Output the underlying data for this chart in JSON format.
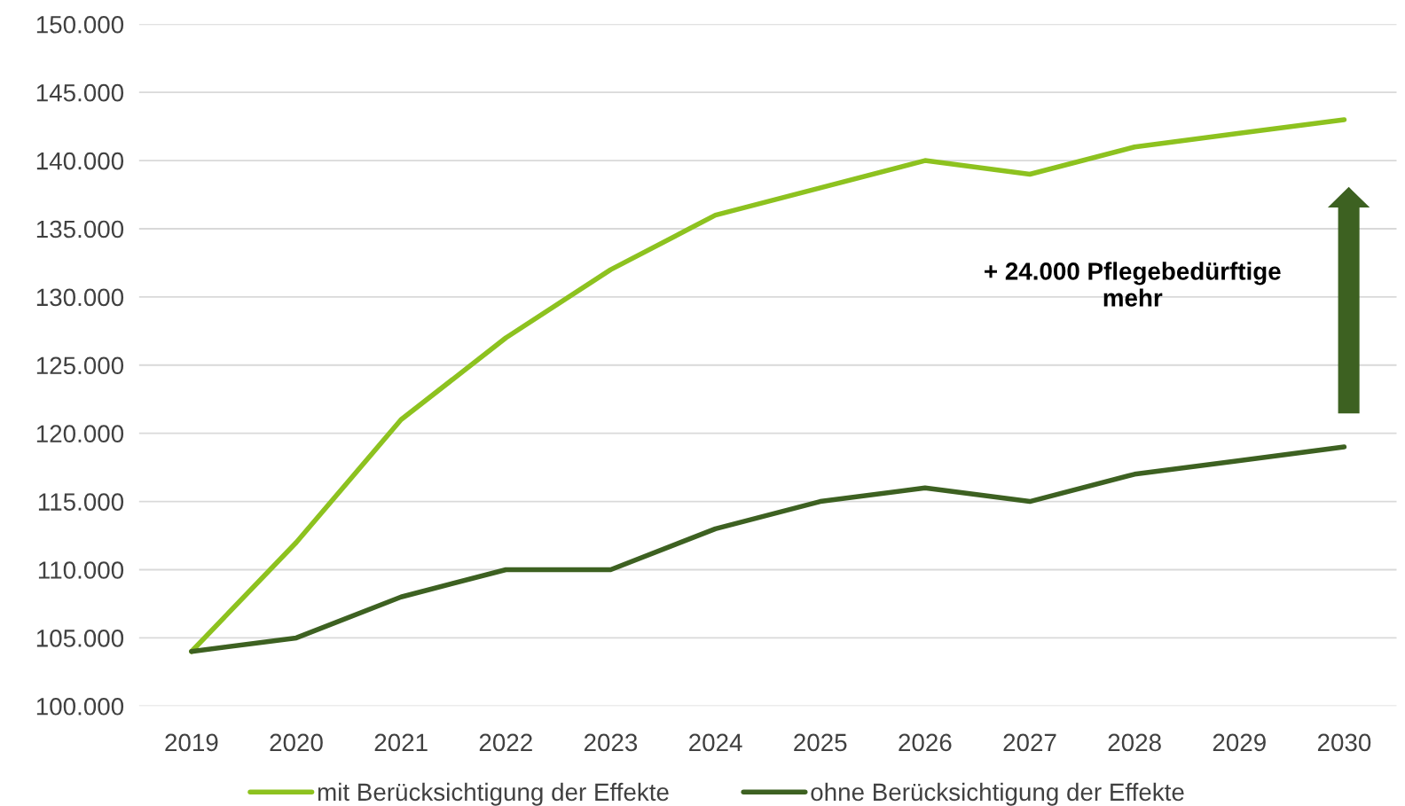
{
  "chart_data": {
    "type": "line",
    "categories": [
      "2019",
      "2020",
      "2021",
      "2022",
      "2023",
      "2024",
      "2025",
      "2026",
      "2027",
      "2028",
      "2029",
      "2030"
    ],
    "series": [
      {
        "name": "mit Berücksichtigung der Effekte",
        "color": "#8dc21f",
        "values": [
          104000,
          112000,
          121000,
          127000,
          132000,
          136000,
          138000,
          140000,
          139000,
          141000,
          142000,
          143000
        ]
      },
      {
        "name": "ohne Berücksichtigung der Effekte",
        "color": "#3d6121",
        "values": [
          104000,
          105000,
          108000,
          110000,
          110000,
          113000,
          115000,
          116000,
          115000,
          117000,
          118000,
          119000
        ]
      }
    ],
    "ylim": [
      100000,
      150000
    ],
    "yticks": [
      {
        "value": 100000,
        "label": "100.000"
      },
      {
        "value": 105000,
        "label": "105.000"
      },
      {
        "value": 110000,
        "label": "110.000"
      },
      {
        "value": 115000,
        "label": "115.000"
      },
      {
        "value": 120000,
        "label": "120.000"
      },
      {
        "value": 125000,
        "label": "125.000"
      },
      {
        "value": 130000,
        "label": "130.000"
      },
      {
        "value": 135000,
        "label": "135.000"
      },
      {
        "value": 140000,
        "label": "140.000"
      },
      {
        "value": 145000,
        "label": "145.000"
      },
      {
        "value": 150000,
        "label": "150.000"
      }
    ],
    "grid": "y",
    "legend": "bottom",
    "marker": "none",
    "line_style": "solid",
    "annotations": [
      "+ 24.000 Pflegebedürftige\nmehr"
    ]
  }
}
